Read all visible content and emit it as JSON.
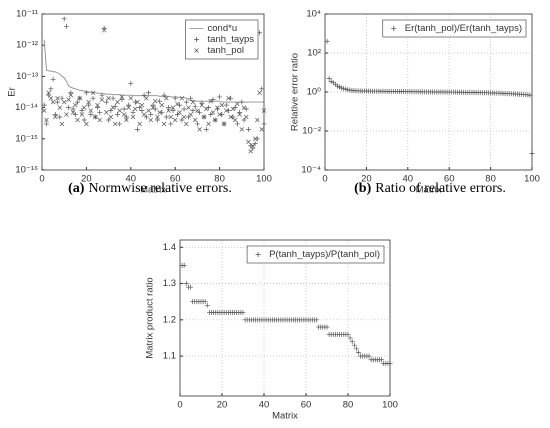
{
  "chart_data": [
    {
      "type": "scatter",
      "ylabel": "Er",
      "xlabel": "Matrix",
      "caption_label": "(a)",
      "caption": "Normwise relative errors.",
      "log_y": true,
      "grid": false,
      "legend": "northeast",
      "xlim": [
        0,
        100
      ],
      "xticks": [
        0,
        20,
        40,
        60,
        80,
        100
      ],
      "ylim": [
        1e-16,
        1e-11
      ],
      "yticks": [
        {
          "value": 1e-16,
          "label": "10⁻¹⁶"
        },
        {
          "value": 1e-15,
          "label": "10⁻¹⁵"
        },
        {
          "value": 1e-14,
          "label": "10⁻¹⁴"
        },
        {
          "value": 1e-13,
          "label": "10⁻¹³"
        },
        {
          "value": 1e-12,
          "label": "10⁻¹²"
        },
        {
          "value": 1e-11,
          "label": "10⁻¹¹"
        }
      ],
      "x": [
        1,
        2,
        3,
        4,
        5,
        6,
        7,
        8,
        9,
        10,
        11,
        12,
        13,
        14,
        15,
        16,
        17,
        18,
        19,
        20,
        21,
        22,
        23,
        24,
        25,
        26,
        27,
        28,
        29,
        30,
        31,
        32,
        33,
        34,
        35,
        36,
        37,
        38,
        39,
        40,
        41,
        42,
        43,
        44,
        45,
        46,
        47,
        48,
        49,
        50,
        51,
        52,
        53,
        54,
        55,
        56,
        57,
        58,
        59,
        60,
        61,
        62,
        63,
        64,
        65,
        66,
        67,
        68,
        69,
        70,
        71,
        72,
        73,
        74,
        75,
        76,
        77,
        78,
        79,
        80,
        81,
        82,
        83,
        84,
        85,
        86,
        87,
        88,
        89,
        90,
        91,
        92,
        93,
        94,
        95,
        96,
        97,
        98,
        99,
        100
      ],
      "series": [
        {
          "name": "cond*u",
          "color": "#8c8c8c",
          "marker": "line",
          "values": [
            1.5e-12,
            1.6e-13,
            1.5e-13,
            1.5e-13,
            1.4e-13,
            1.4e-13,
            1.3e-13,
            1.2e-13,
            1e-13,
            9e-14,
            7e-14,
            5e-14,
            4.5e-14,
            4.2e-14,
            4e-14,
            3.8e-14,
            3.6e-14,
            3.5e-14,
            3.4e-14,
            3.3e-14,
            3.2e-14,
            3.1e-14,
            3e-14,
            3e-14,
            2.9e-14,
            2.9e-14,
            2.8e-14,
            2.8e-14,
            2.7e-14,
            2.7e-14,
            2.7e-14,
            2.6e-14,
            2.6e-14,
            2.6e-14,
            2.6e-14,
            2.5e-14,
            2.5e-14,
            2.5e-14,
            2.5e-14,
            2.5e-14,
            2.4e-14,
            2.4e-14,
            2.4e-14,
            2.4e-14,
            2.4e-14,
            2.4e-14,
            2.4e-14,
            2.4e-14,
            2.4e-14,
            2.4e-14,
            2.4e-14,
            2.4e-14,
            2.3e-14,
            2.3e-14,
            2.3e-14,
            2.3e-14,
            2.3e-14,
            2.2e-14,
            2.2e-14,
            2.2e-14,
            2.2e-14,
            2.1e-14,
            2.1e-14,
            2.1e-14,
            2e-14,
            1.8e-14,
            1.7e-14,
            1.7e-14,
            1.6e-14,
            1.6e-14,
            1.6e-14,
            1.6e-14,
            1.6e-14,
            1.6e-14,
            1.6e-14,
            1.6e-14,
            1.6e-14,
            1.6e-14,
            1.6e-14,
            1.6e-14,
            1.5e-14,
            1.5e-14,
            1.5e-14,
            1.5e-14,
            1.5e-14,
            1.5e-14,
            1.5e-14,
            1.5e-14,
            1.5e-14,
            1.5e-14,
            1.5e-14,
            1.5e-14,
            1.5e-14,
            1.5e-14,
            1.5e-14,
            1.5e-14,
            1.5e-14,
            1.5e-14,
            1.5e-14,
            1.5e-14
          ]
        },
        {
          "name": "tanh_tayps",
          "color": "#555555",
          "marker": "plus",
          "values": [
            1.2e-14,
            3e-15,
            2.5e-14,
            4e-14,
            8e-14,
            6e-15,
            1.5e-14,
            5e-15,
            2e-14,
            7e-12,
            4e-12,
            1e-14,
            3e-14,
            9e-15,
            6e-15,
            1.5e-14,
            2e-14,
            8e-15,
            4e-15,
            3e-14,
            1.2e-14,
            6e-15,
            2e-14,
            5e-15,
            1e-14,
            7e-15,
            2.5e-14,
            3.5e-12,
            1.5e-14,
            4e-15,
            8e-15,
            2e-14,
            1.1e-14,
            6e-15,
            3e-15,
            1.8e-14,
            9e-15,
            5e-15,
            1.2e-14,
            6e-14,
            7e-15,
            1.5e-14,
            2e-15,
            1e-14,
            8e-15,
            2.5e-14,
            5e-15,
            3e-14,
            6e-15,
            1.2e-14,
            9e-15,
            4e-15,
            1.6e-14,
            7e-15,
            2.5e-14,
            5e-15,
            1e-14,
            3e-15,
            8e-15,
            2e-14,
            6e-15,
            1.2e-14,
            4e-15,
            9e-15,
            1.5e-14,
            5e-15,
            2e-14,
            8e-15,
            1.1e-14,
            3e-15,
            7e-15,
            1.4e-14,
            5e-15,
            2e-15,
            1e-14,
            6e-15,
            1.8e-14,
            4e-15,
            9e-15,
            2.2e-14,
            6e-15,
            3e-15,
            1.2e-14,
            8e-15,
            2e-14,
            5e-15,
            1e-14,
            3e-15,
            7e-15,
            1.5e-14,
            4e-15,
            9e-15,
            2e-15,
            6e-16,
            5e-16,
            7e-16,
            1e-15,
            2.5e-12,
            4e-14,
            3e-15
          ]
        },
        {
          "name": "tanh_pol",
          "color": "#555555",
          "marker": "cross",
          "values": [
            8e-15,
            4e-15,
            3e-14,
            2e-14,
            1.5e-14,
            5e-15,
            2e-14,
            1e-14,
            3e-15,
            1.5e-14,
            6e-15,
            1.8e-14,
            2.5e-14,
            7e-15,
            1.2e-14,
            4e-15,
            2e-14,
            6e-15,
            1e-14,
            3e-15,
            1.5e-14,
            8e-15,
            3e-14,
            5e-15,
            1.2e-14,
            4e-15,
            1.8e-14,
            3e-12,
            7e-15,
            2e-14,
            5e-15,
            1e-14,
            3e-15,
            1.5e-14,
            8e-15,
            2.2e-14,
            6e-15,
            4e-15,
            1e-14,
            2e-14,
            5e-15,
            9e-15,
            1.5e-14,
            3e-15,
            1.2e-14,
            6e-15,
            2e-14,
            8e-15,
            4e-15,
            1e-14,
            1.6e-14,
            5e-15,
            7e-15,
            1.2e-14,
            3e-15,
            2e-14,
            8e-15,
            5e-15,
            1e-14,
            4e-15,
            1.3e-14,
            7e-15,
            2e-14,
            5e-15,
            3e-15,
            1e-14,
            6e-15,
            1.5e-14,
            4e-15,
            8e-15,
            2e-15,
            1.2e-14,
            5e-15,
            9e-15,
            3e-15,
            1.6e-14,
            7e-15,
            4e-15,
            1e-14,
            6e-15,
            1.2e-14,
            3e-15,
            8e-15,
            2e-14,
            5e-15,
            9e-15,
            4e-15,
            1.3e-14,
            6e-15,
            2e-15,
            1e-14,
            5e-15,
            8e-16,
            4e-16,
            6e-16,
            1e-15,
            4e-15,
            3e-14,
            2e-15,
            8e-15
          ]
        }
      ]
    },
    {
      "type": "scatter",
      "ylabel": "Relative error ratio",
      "xlabel": "Matrix",
      "caption_label": "(b)",
      "caption": "Ratio of relative errors.",
      "log_y": true,
      "grid": true,
      "legend": "northeast",
      "xlim": [
        0,
        100
      ],
      "xticks": [
        0,
        20,
        40,
        60,
        80,
        100
      ],
      "ylim": [
        0.0001,
        10000.0
      ],
      "yticks": [
        {
          "value": 0.0001,
          "label": "10⁻⁴"
        },
        {
          "value": 0.01,
          "label": "10⁻²"
        },
        {
          "value": 1,
          "label": "10⁰"
        },
        {
          "value": 100,
          "label": "10²"
        },
        {
          "value": 10000,
          "label": "10⁴"
        }
      ],
      "x": [
        1,
        2,
        3,
        4,
        5,
        6,
        7,
        8,
        9,
        10,
        11,
        12,
        13,
        14,
        15,
        16,
        17,
        18,
        19,
        20,
        21,
        22,
        23,
        24,
        25,
        26,
        27,
        28,
        29,
        30,
        31,
        32,
        33,
        34,
        35,
        36,
        37,
        38,
        39,
        40,
        41,
        42,
        43,
        44,
        45,
        46,
        47,
        48,
        49,
        50,
        51,
        52,
        53,
        54,
        55,
        56,
        57,
        58,
        59,
        60,
        61,
        62,
        63,
        64,
        65,
        66,
        67,
        68,
        69,
        70,
        71,
        72,
        73,
        74,
        75,
        76,
        77,
        78,
        79,
        80,
        81,
        82,
        83,
        84,
        85,
        86,
        87,
        88,
        89,
        90,
        91,
        92,
        93,
        94,
        95,
        96,
        97,
        98,
        99,
        100
      ],
      "series": [
        {
          "name": "Er(tanh_pol)/Er(tanh_tayps)",
          "color": "#555555",
          "marker": "plus",
          "values": [
            400,
            5,
            3.5,
            3,
            2.5,
            2,
            1.8,
            1.6,
            1.5,
            1.4,
            1.3,
            1.25,
            1.2,
            1.18,
            1.16,
            1.15,
            1.14,
            1.13,
            1.12,
            1.12,
            1.11,
            1.11,
            1.1,
            1.1,
            1.1,
            1.09,
            1.09,
            1.09,
            1.08,
            1.08,
            1.08,
            1.07,
            1.07,
            1.07,
            1.06,
            1.06,
            1.06,
            1.05,
            1.05,
            1.05,
            1.05,
            1.04,
            1.04,
            1.04,
            1.03,
            1.03,
            1.03,
            1.02,
            1.02,
            1.02,
            1.01,
            1.01,
            1.01,
            1,
            1,
            1,
            1,
            0.99,
            0.99,
            0.99,
            0.98,
            0.98,
            0.98,
            0.97,
            0.97,
            0.97,
            0.96,
            0.96,
            0.95,
            0.95,
            0.95,
            0.94,
            0.94,
            0.93,
            0.93,
            0.92,
            0.92,
            0.91,
            0.91,
            0.9,
            0.89,
            0.88,
            0.87,
            0.87,
            0.86,
            0.85,
            0.84,
            0.83,
            0.82,
            0.81,
            0.8,
            0.79,
            0.78,
            0.77,
            0.76,
            0.75,
            0.73,
            0.71,
            0.68,
            0.0007
          ]
        }
      ]
    },
    {
      "type": "scatter",
      "ylabel": "Matrix product ratio",
      "xlabel": "Matrix",
      "log_y": false,
      "grid": true,
      "legend": "northeast",
      "xlim": [
        0,
        100
      ],
      "xticks": [
        0,
        20,
        40,
        60,
        80,
        100
      ],
      "ylim": [
        0.99,
        1.42
      ],
      "yticks": [
        1.1,
        1.2,
        1.3,
        1.4
      ],
      "x": [
        1,
        2,
        3,
        4,
        5,
        6,
        7,
        8,
        9,
        10,
        11,
        12,
        13,
        14,
        15,
        16,
        17,
        18,
        19,
        20,
        21,
        22,
        23,
        24,
        25,
        26,
        27,
        28,
        29,
        30,
        31,
        32,
        33,
        34,
        35,
        36,
        37,
        38,
        39,
        40,
        41,
        42,
        43,
        44,
        45,
        46,
        47,
        48,
        49,
        50,
        51,
        52,
        53,
        54,
        55,
        56,
        57,
        58,
        59,
        60,
        61,
        62,
        63,
        64,
        65,
        66,
        67,
        68,
        69,
        70,
        71,
        72,
        73,
        74,
        75,
        76,
        77,
        78,
        79,
        80,
        81,
        82,
        83,
        84,
        85,
        86,
        87,
        88,
        89,
        90,
        91,
        92,
        93,
        94,
        95,
        96,
        97,
        98,
        99,
        100
      ],
      "series": [
        {
          "name": "P(tanh_tayps)/P(tanh_pol)",
          "color": "#555555",
          "marker": "plus",
          "values": [
            1.35,
            1.35,
            1.3,
            1.29,
            1.29,
            1.25,
            1.25,
            1.25,
            1.25,
            1.25,
            1.25,
            1.25,
            1.24,
            1.22,
            1.22,
            1.22,
            1.22,
            1.22,
            1.22,
            1.22,
            1.22,
            1.22,
            1.22,
            1.22,
            1.22,
            1.22,
            1.22,
            1.22,
            1.22,
            1.22,
            1.2,
            1.2,
            1.2,
            1.2,
            1.2,
            1.2,
            1.2,
            1.2,
            1.2,
            1.2,
            1.2,
            1.2,
            1.2,
            1.2,
            1.2,
            1.2,
            1.2,
            1.2,
            1.2,
            1.2,
            1.2,
            1.2,
            1.2,
            1.2,
            1.2,
            1.2,
            1.2,
            1.2,
            1.2,
            1.2,
            1.2,
            1.2,
            1.2,
            1.2,
            1.2,
            1.18,
            1.18,
            1.18,
            1.18,
            1.18,
            1.16,
            1.16,
            1.16,
            1.16,
            1.16,
            1.16,
            1.16,
            1.16,
            1.16,
            1.16,
            1.15,
            1.14,
            1.13,
            1.12,
            1.11,
            1.1,
            1.1,
            1.1,
            1.1,
            1.1,
            1.09,
            1.09,
            1.09,
            1.09,
            1.09,
            1.09,
            1.08,
            1.08,
            1.08,
            1.08
          ]
        }
      ]
    }
  ]
}
